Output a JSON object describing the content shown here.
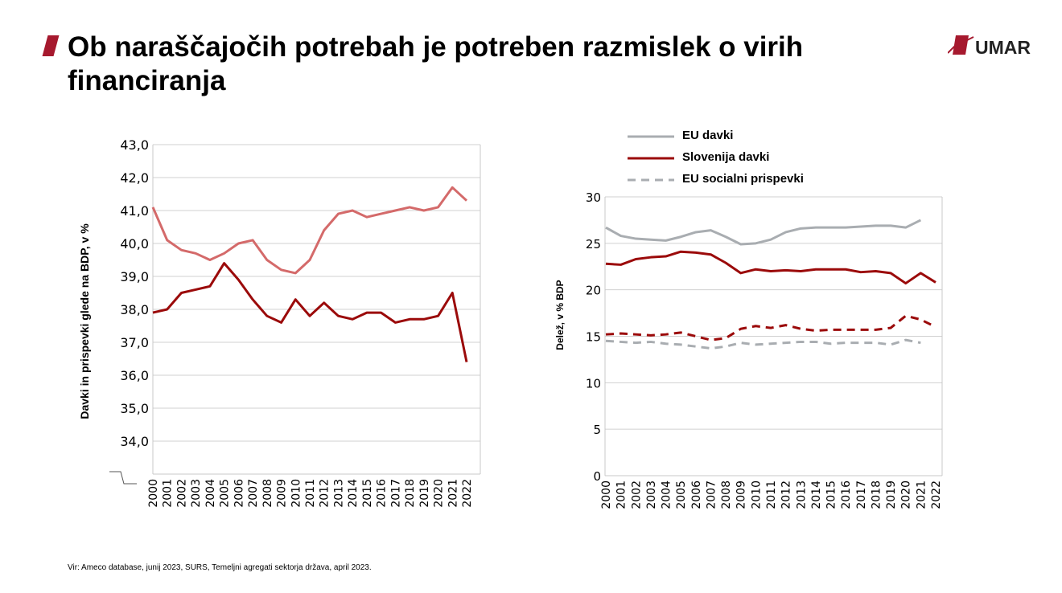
{
  "header": {
    "title": "Ob naraščajočih potrebah je potreben razmislek o virih financiranja",
    "logo_text": "UMAR"
  },
  "source": "Vir: Ameco database, junij 2023, SURS, Temeljni agregati sektorja država, april 2023.",
  "colors": {
    "accent": "#a6192e",
    "dark_red": "#9b0a0a",
    "light_red": "#d46a6a",
    "gray": "#a9adb1"
  },
  "chart_data": [
    {
      "type": "line",
      "ylabel": "Davki in prispevki glede na BDP, v %",
      "ylim": [
        33,
        43
      ],
      "yticks": [
        "34,0",
        "35,0",
        "36,0",
        "37,0",
        "38,0",
        "39,0",
        "40,0",
        "41,0",
        "42,0",
        "43,0"
      ],
      "grid": true,
      "categories": [
        "2000",
        "2001",
        "2002",
        "2003",
        "2004",
        "2005",
        "2006",
        "2007",
        "2008",
        "2009",
        "2010",
        "2011",
        "2012",
        "2013",
        "2014",
        "2015",
        "2016",
        "2017",
        "2018",
        "2019",
        "2020",
        "2021",
        "2022"
      ],
      "series": [
        {
          "color": "#d46a6a",
          "values": [
            41.1,
            40.1,
            39.8,
            39.7,
            39.5,
            39.7,
            40.0,
            40.1,
            39.5,
            39.2,
            39.1,
            39.5,
            40.4,
            40.9,
            41.0,
            40.8,
            40.9,
            41.0,
            41.1,
            41.0,
            41.1,
            41.7,
            41.3
          ]
        },
        {
          "color": "#9b0a0a",
          "values": [
            37.9,
            38.0,
            38.5,
            38.6,
            38.7,
            39.4,
            38.9,
            38.3,
            37.8,
            37.6,
            38.3,
            37.8,
            38.2,
            37.8,
            37.7,
            37.9,
            37.9,
            37.6,
            37.7,
            37.7,
            37.8,
            38.5,
            36.4
          ]
        }
      ]
    },
    {
      "type": "line",
      "ylabel": "Delež, v % BDP",
      "ylim": [
        0,
        30
      ],
      "yticks": [
        "0",
        "5",
        "10",
        "15",
        "20",
        "25",
        "30"
      ],
      "grid": true,
      "legend": "top",
      "categories": [
        "2000",
        "2001",
        "2002",
        "2003",
        "2004",
        "2005",
        "2006",
        "2007",
        "2008",
        "2009",
        "2010",
        "2011",
        "2012",
        "2013",
        "2014",
        "2015",
        "2016",
        "2017",
        "2018",
        "2019",
        "2020",
        "2021",
        "2022"
      ],
      "series": [
        {
          "name": "EU davki",
          "color": "#a9adb1",
          "dash": false,
          "values": [
            26.7,
            25.8,
            25.5,
            25.4,
            25.3,
            25.7,
            26.2,
            26.4,
            25.7,
            24.9,
            25.0,
            25.4,
            26.2,
            26.6,
            26.7,
            26.7,
            26.7,
            26.8,
            26.9,
            26.9,
            26.7,
            27.5,
            null
          ]
        },
        {
          "name": "Slovenija davki",
          "color": "#9b0a0a",
          "dash": false,
          "values": [
            22.8,
            22.7,
            23.3,
            23.5,
            23.6,
            24.1,
            24.0,
            23.8,
            22.9,
            21.8,
            22.2,
            22.0,
            22.1,
            22.0,
            22.2,
            22.2,
            22.2,
            21.9,
            22.0,
            21.8,
            20.7,
            21.8,
            20.8
          ]
        },
        {
          "color": "#9b0a0a",
          "dash": true,
          "values": [
            15.2,
            15.3,
            15.2,
            15.1,
            15.2,
            15.4,
            15.0,
            14.6,
            14.8,
            15.8,
            16.1,
            15.9,
            16.2,
            15.8,
            15.6,
            15.7,
            15.7,
            15.7,
            15.7,
            15.9,
            17.2,
            16.8,
            16.0
          ]
        },
        {
          "name": "EU socialni prispevki",
          "color": "#a9adb1",
          "dash": true,
          "values": [
            14.5,
            14.4,
            14.3,
            14.4,
            14.2,
            14.1,
            13.9,
            13.7,
            13.9,
            14.3,
            14.1,
            14.2,
            14.3,
            14.4,
            14.4,
            14.2,
            14.3,
            14.3,
            14.3,
            14.1,
            14.6,
            14.3,
            null
          ]
        }
      ]
    }
  ]
}
